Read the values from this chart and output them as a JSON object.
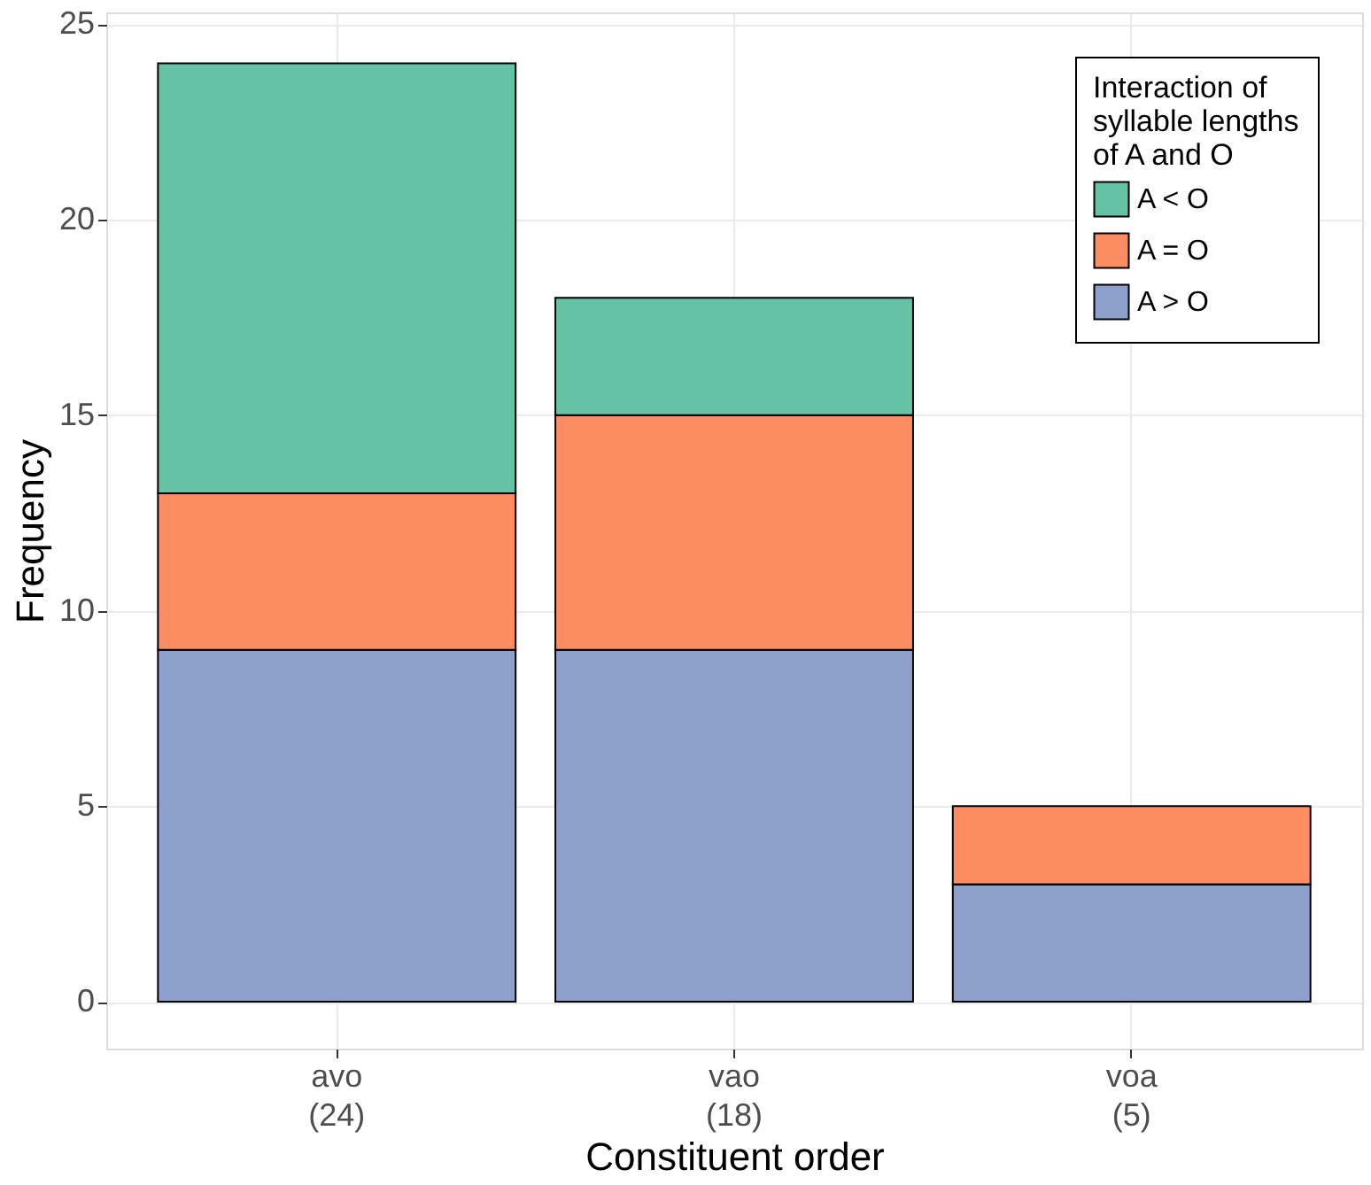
{
  "chart_data": {
    "type": "bar",
    "stacked": true,
    "xlabel": "Constituent order",
    "ylabel": "Frequency",
    "legend_title": "Interaction of\nsyllable lengths\nof A and O",
    "categories": [
      "avo\n(24)",
      "vao\n(18)",
      "voa\n(5)"
    ],
    "series": [
      {
        "name": "A > O",
        "color": "#8da0cb",
        "values": [
          9,
          9,
          3
        ]
      },
      {
        "name": "A = O",
        "color": "#fc8d62",
        "values": [
          4,
          6,
          2
        ]
      },
      {
        "name": "A < O",
        "color": "#66c2a5",
        "values": [
          11,
          3,
          0
        ]
      }
    ],
    "ylim": [
      -1.2,
      25.3
    ],
    "yticks": [
      0,
      5,
      10,
      15,
      20,
      25
    ],
    "grid": true,
    "legend": "top right"
  }
}
